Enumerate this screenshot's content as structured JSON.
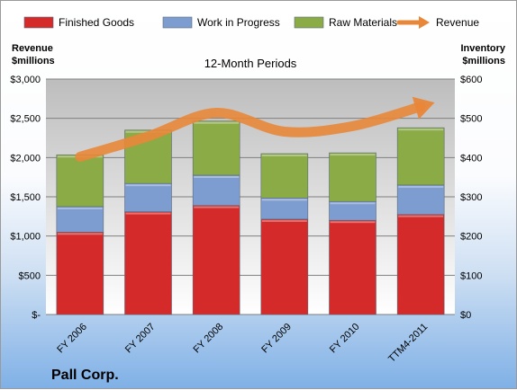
{
  "chart_data": {
    "type": "bar",
    "stacked": true,
    "title": "12-Month Periods",
    "company": "Pall Corp.",
    "categories": [
      "FY 2006",
      "FY 2007",
      "FY 2008",
      "FY 2009",
      "FY 2010",
      "TTM4-2011"
    ],
    "left_axis": {
      "label_line1": "Revenue",
      "label_line2": "$millions",
      "ylim": [
        0,
        3000
      ],
      "ticks": [
        0,
        500,
        1000,
        1500,
        2000,
        2500,
        3000
      ],
      "tick_labels": [
        "$-",
        "$500",
        "$1,000",
        "$1,500",
        "$2,000",
        "$2,500",
        "$3,000"
      ]
    },
    "right_axis": {
      "label_line1": "Inventory",
      "label_line2": "$millions",
      "ylim": [
        0,
        600
      ],
      "ticks": [
        0,
        100,
        200,
        300,
        400,
        500,
        600
      ],
      "tick_labels": [
        "$0",
        "$100",
        "$200",
        "$300",
        "$400",
        "$500",
        "$600"
      ]
    },
    "series": [
      {
        "name": "Finished Goods",
        "color": "#d42a2a",
        "axis": "right",
        "values": [
          210,
          262,
          278,
          243,
          240,
          255
        ]
      },
      {
        "name": "Work in Progress",
        "color": "#7d9ccf",
        "axis": "right",
        "values": [
          65,
          72,
          77,
          54,
          48,
          75
        ]
      },
      {
        "name": "Raw Materials",
        "color": "#8aab45",
        "axis": "right",
        "values": [
          132,
          136,
          138,
          113,
          124,
          146
        ]
      },
      {
        "name": "Revenue",
        "color": "#e8873a",
        "type": "line",
        "axis": "left",
        "values": [
          2010,
          2270,
          2570,
          2330,
          2400,
          2650
        ]
      }
    ],
    "grid": true,
    "legend_position": "top"
  }
}
